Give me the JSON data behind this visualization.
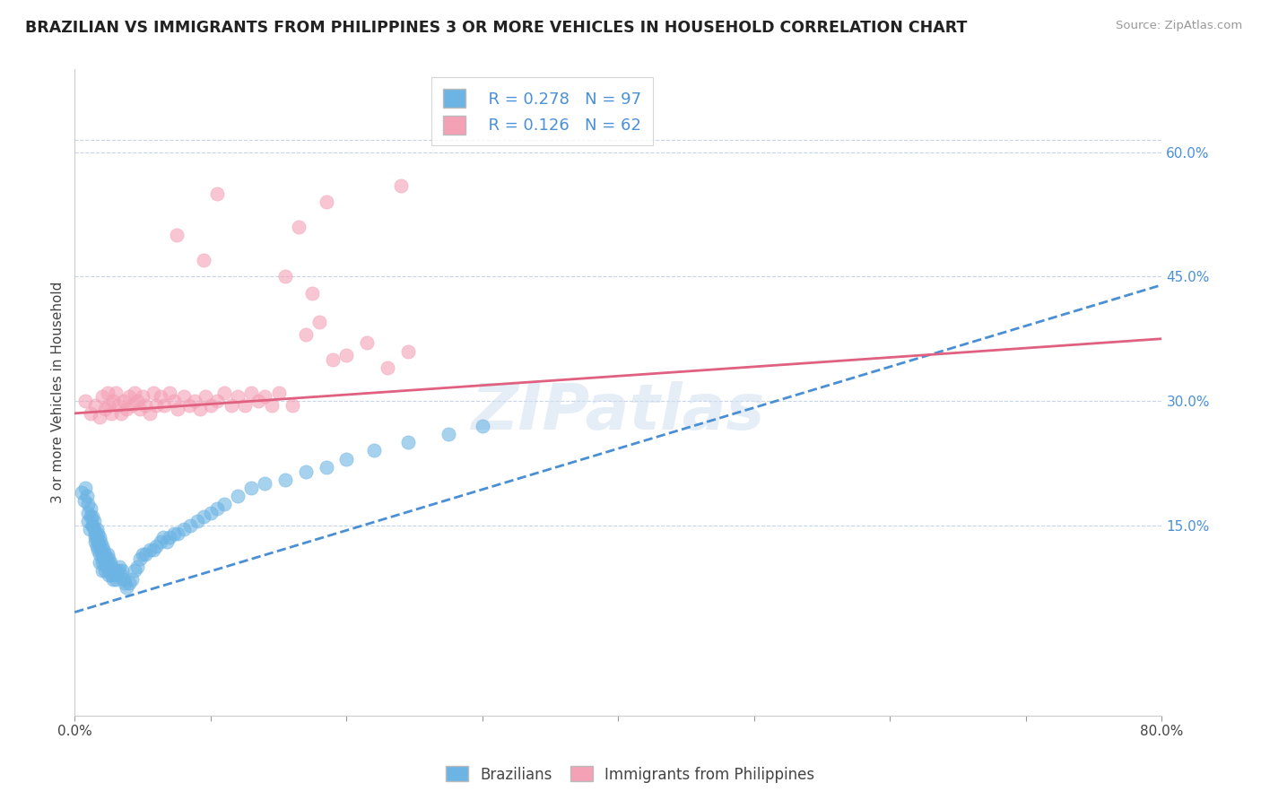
{
  "title": "BRAZILIAN VS IMMIGRANTS FROM PHILIPPINES 3 OR MORE VEHICLES IN HOUSEHOLD CORRELATION CHART",
  "source": "Source: ZipAtlas.com",
  "ylabel": "3 or more Vehicles in Household",
  "x_min": 0.0,
  "x_max": 0.8,
  "y_min": -0.08,
  "y_max": 0.7,
  "y_ticks_right": [
    0.15,
    0.3,
    0.45,
    0.6
  ],
  "y_tick_labels_right": [
    "15.0%",
    "30.0%",
    "45.0%",
    "60.0%"
  ],
  "legend_r1": "R = 0.278",
  "legend_n1": "N = 97",
  "legend_r2": "R = 0.126",
  "legend_n2": "N = 62",
  "blue_color": "#6cb4e4",
  "pink_color": "#f4a0b5",
  "trend_blue_color": "#4a8fd4",
  "trend_pink_color": "#e06080",
  "watermark": "ZIPatlas",
  "background_color": "#ffffff",
  "grid_color": "#c8d4e8",
  "blue_scatter_x": [
    0.005,
    0.007,
    0.008,
    0.009,
    0.01,
    0.01,
    0.01,
    0.011,
    0.012,
    0.012,
    0.013,
    0.013,
    0.013,
    0.014,
    0.014,
    0.015,
    0.015,
    0.015,
    0.016,
    0.016,
    0.016,
    0.017,
    0.017,
    0.017,
    0.018,
    0.018,
    0.018,
    0.018,
    0.019,
    0.019,
    0.02,
    0.02,
    0.02,
    0.02,
    0.021,
    0.021,
    0.022,
    0.022,
    0.022,
    0.023,
    0.023,
    0.024,
    0.024,
    0.025,
    0.025,
    0.025,
    0.026,
    0.026,
    0.027,
    0.027,
    0.028,
    0.028,
    0.029,
    0.03,
    0.03,
    0.031,
    0.032,
    0.033,
    0.034,
    0.035,
    0.036,
    0.037,
    0.038,
    0.04,
    0.042,
    0.044,
    0.046,
    0.048,
    0.05,
    0.052,
    0.055,
    0.058,
    0.06,
    0.063,
    0.065,
    0.068,
    0.07,
    0.073,
    0.076,
    0.08,
    0.085,
    0.09,
    0.095,
    0.1,
    0.105,
    0.11,
    0.12,
    0.13,
    0.14,
    0.155,
    0.17,
    0.185,
    0.2,
    0.22,
    0.245,
    0.275,
    0.3
  ],
  "blue_scatter_y": [
    0.19,
    0.18,
    0.195,
    0.185,
    0.175,
    0.165,
    0.155,
    0.145,
    0.17,
    0.16,
    0.15,
    0.16,
    0.15,
    0.155,
    0.145,
    0.135,
    0.14,
    0.13,
    0.145,
    0.135,
    0.125,
    0.14,
    0.13,
    0.12,
    0.135,
    0.125,
    0.115,
    0.105,
    0.13,
    0.12,
    0.125,
    0.115,
    0.105,
    0.095,
    0.12,
    0.11,
    0.115,
    0.105,
    0.095,
    0.11,
    0.1,
    0.115,
    0.105,
    0.11,
    0.1,
    0.09,
    0.105,
    0.095,
    0.1,
    0.09,
    0.095,
    0.085,
    0.09,
    0.095,
    0.085,
    0.09,
    0.095,
    0.1,
    0.09,
    0.095,
    0.085,
    0.08,
    0.075,
    0.08,
    0.085,
    0.095,
    0.1,
    0.11,
    0.115,
    0.115,
    0.12,
    0.12,
    0.125,
    0.13,
    0.135,
    0.13,
    0.135,
    0.14,
    0.14,
    0.145,
    0.15,
    0.155,
    0.16,
    0.165,
    0.17,
    0.175,
    0.185,
    0.195,
    0.2,
    0.205,
    0.215,
    0.22,
    0.23,
    0.24,
    0.25,
    0.26,
    0.27
  ],
  "pink_scatter_x": [
    0.008,
    0.012,
    0.015,
    0.018,
    0.02,
    0.022,
    0.024,
    0.025,
    0.027,
    0.028,
    0.03,
    0.032,
    0.034,
    0.036,
    0.038,
    0.04,
    0.042,
    0.044,
    0.046,
    0.048,
    0.05,
    0.052,
    0.055,
    0.058,
    0.06,
    0.063,
    0.066,
    0.07,
    0.073,
    0.076,
    0.08,
    0.084,
    0.088,
    0.092,
    0.096,
    0.1,
    0.105,
    0.11,
    0.115,
    0.12,
    0.125,
    0.13,
    0.135,
    0.14,
    0.145,
    0.15,
    0.16,
    0.17,
    0.18,
    0.19,
    0.2,
    0.215,
    0.23,
    0.245,
    0.155,
    0.175,
    0.075,
    0.165,
    0.185,
    0.105,
    0.24,
    0.095
  ],
  "pink_scatter_y": [
    0.3,
    0.285,
    0.295,
    0.28,
    0.305,
    0.29,
    0.31,
    0.295,
    0.285,
    0.3,
    0.31,
    0.295,
    0.285,
    0.3,
    0.29,
    0.305,
    0.295,
    0.31,
    0.3,
    0.29,
    0.305,
    0.295,
    0.285,
    0.31,
    0.295,
    0.305,
    0.295,
    0.31,
    0.3,
    0.29,
    0.305,
    0.295,
    0.3,
    0.29,
    0.305,
    0.295,
    0.3,
    0.31,
    0.295,
    0.305,
    0.295,
    0.31,
    0.3,
    0.305,
    0.295,
    0.31,
    0.295,
    0.38,
    0.395,
    0.35,
    0.355,
    0.37,
    0.34,
    0.36,
    0.45,
    0.43,
    0.5,
    0.51,
    0.54,
    0.55,
    0.56,
    0.47
  ]
}
